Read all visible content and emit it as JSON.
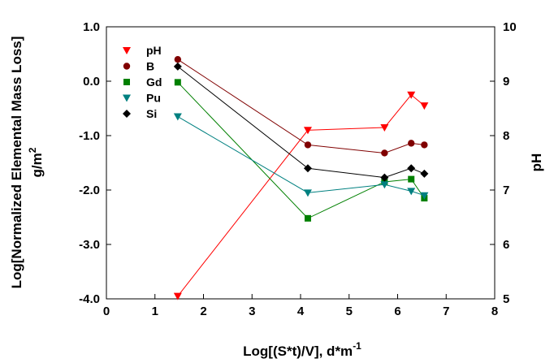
{
  "chart_data": {
    "type": "line",
    "title": "",
    "xlabel": "Log[(S*t)/V], d*m",
    "xlabel_sup": "-1",
    "ylabel": "Log[Normalized Elemental Mass Loss]",
    "ylabel_line2": "g/m",
    "ylabel_line2_sup": "2",
    "y2label": "pH",
    "xlim": [
      0,
      8
    ],
    "ylim": [
      -4.0,
      1.0
    ],
    "y2lim": [
      5,
      10
    ],
    "x_ticks": [
      "0",
      "1",
      "2",
      "3",
      "4",
      "5",
      "6",
      "7",
      "8"
    ],
    "y_ticks": [
      "-4.0",
      "-3.0",
      "-2.0",
      "-1.0",
      "0.0",
      "1.0"
    ],
    "y2_ticks": [
      "5",
      "6",
      "7",
      "8",
      "9",
      "10"
    ],
    "grid": false,
    "legend_position": "top-left",
    "series": [
      {
        "name": "pH",
        "axis": "right",
        "marker": "triangle-down",
        "color": "#ff0000",
        "x": [
          1.47,
          4.15,
          5.73,
          6.28,
          6.55
        ],
        "y": [
          5.05,
          8.1,
          8.15,
          8.75,
          8.55
        ]
      },
      {
        "name": "B",
        "axis": "left",
        "marker": "circle",
        "color": "#800000",
        "x": [
          1.47,
          4.15,
          5.73,
          6.28,
          6.55
        ],
        "y": [
          0.4,
          -1.17,
          -1.32,
          -1.14,
          -1.17
        ]
      },
      {
        "name": "Gd",
        "axis": "left",
        "marker": "square",
        "color": "#008000",
        "x": [
          1.47,
          4.15,
          5.73,
          6.28,
          6.55
        ],
        "y": [
          -0.02,
          -2.52,
          -1.85,
          -1.8,
          -2.15
        ]
      },
      {
        "name": "Pu",
        "axis": "left",
        "marker": "triangle-down",
        "color": "#008080",
        "x": [
          1.47,
          4.15,
          5.73,
          6.28,
          6.55
        ],
        "y": [
          -0.65,
          -2.05,
          -1.9,
          -2.02,
          -2.1
        ]
      },
      {
        "name": "Si",
        "axis": "left",
        "marker": "diamond",
        "color": "#000000",
        "x": [
          1.47,
          4.15,
          5.73,
          6.28,
          6.55
        ],
        "y": [
          0.27,
          -1.6,
          -1.77,
          -1.6,
          -1.7
        ]
      }
    ]
  }
}
